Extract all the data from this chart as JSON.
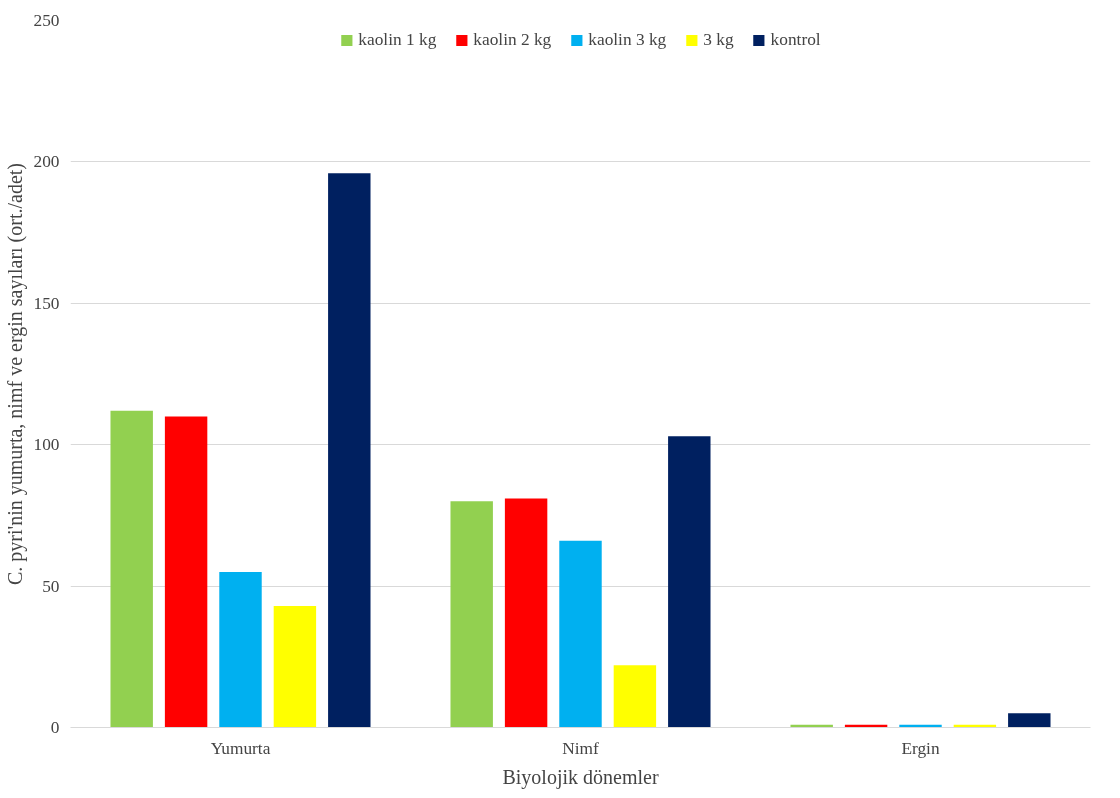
{
  "chart_data": {
    "type": "bar",
    "xlabel": "Biyolojik dönemler",
    "ylabel": "C. pyri'nin yumurta, nimf ve ergin sayıları (ort./adet)",
    "categories": [
      "Yumurta",
      "Nimf",
      "Ergin"
    ],
    "series": [
      {
        "name": "kaolin 1 kg",
        "color": "#92d050",
        "values": [
          112,
          80,
          1
        ]
      },
      {
        "name": "kaolin 2 kg",
        "color": "#ff0000",
        "values": [
          110,
          81,
          1
        ]
      },
      {
        "name": "kaolin 3 kg",
        "color": "#00b0f0",
        "values": [
          55,
          66,
          1
        ]
      },
      {
        "name": "3 kg",
        "color": "#ffff00",
        "values": [
          43,
          22,
          1
        ]
      },
      {
        "name": "kontrol",
        "color": "#002060",
        "values": [
          196,
          103,
          5
        ]
      }
    ],
    "ylim": [
      0,
      250
    ],
    "yticks": [
      0,
      50,
      100,
      150,
      200,
      250
    ],
    "grid": "y",
    "legend": "top"
  }
}
